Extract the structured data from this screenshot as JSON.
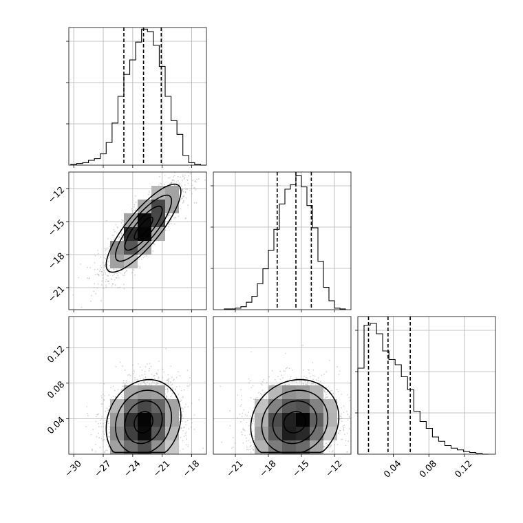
{
  "chart_data": {
    "type": "corner",
    "parameters": [
      {
        "name": "",
        "range": [
          -30.5,
          -16.5
        ],
        "ticks": [
          -30,
          -27,
          -24,
          -21,
          -18
        ],
        "tick_labels": [
          "−30",
          "−27",
          "−24",
          "−21",
          "−18"
        ]
      },
      {
        "name": "",
        "range": [
          -23.0,
          -10.5
        ],
        "ticks": [
          -21,
          -18,
          -15,
          -12
        ],
        "tick_labels": [
          "−21",
          "−18",
          "−15",
          "−12"
        ]
      },
      {
        "name": "",
        "range": [
          0.0,
          0.155
        ],
        "ticks": [
          0.04,
          0.08,
          0.12
        ],
        "tick_labels": [
          "0.04",
          "0.08",
          "0.12"
        ]
      }
    ],
    "marginals": [
      {
        "param_index": 0,
        "bin_edges": [
          -30.3,
          -29.7,
          -29.1,
          -28.5,
          -27.9,
          -27.3,
          -26.7,
          -26.1,
          -25.5,
          -24.9,
          -24.3,
          -23.7,
          -23.1,
          -22.5,
          -21.9,
          -21.3,
          -20.7,
          -20.1,
          -19.5,
          -18.9,
          -18.3,
          -17.7,
          -17.1,
          -16.5
        ],
        "counts": [
          1,
          2,
          3,
          6,
          8,
          14,
          28,
          52,
          85,
          112,
          130,
          152,
          168,
          165,
          148,
          122,
          85,
          55,
          38,
          12,
          3,
          1,
          0
        ],
        "quantiles": [
          -24.9,
          -22.9,
          -21.1
        ],
        "ylim": [
          0,
          170
        ]
      },
      {
        "param_index": 1,
        "bin_edges": [
          -22.0,
          -21.5,
          -21.0,
          -20.5,
          -20.0,
          -19.5,
          -19.0,
          -18.5,
          -18.0,
          -17.5,
          -17.0,
          -16.5,
          -16.0,
          -15.5,
          -15.0,
          -14.5,
          -14.0,
          -13.5,
          -13.0,
          -12.5,
          -12.0,
          -11.5,
          -11.0
        ],
        "counts": [
          1,
          1,
          2,
          4,
          10,
          18,
          35,
          55,
          80,
          108,
          142,
          162,
          168,
          180,
          165,
          140,
          110,
          65,
          30,
          12,
          2,
          1
        ],
        "quantiles": [
          -17.2,
          -15.5,
          -14.1
        ],
        "ylim": [
          0,
          185
        ]
      },
      {
        "param_index": 2,
        "bin_edges": [
          0.0,
          0.007,
          0.014,
          0.021,
          0.028,
          0.035,
          0.042,
          0.049,
          0.056,
          0.063,
          0.07,
          0.077,
          0.084,
          0.091,
          0.098,
          0.105,
          0.112,
          0.119,
          0.126,
          0.133,
          0.14,
          0.147
        ],
        "counts": [
          100,
          150,
          152,
          140,
          120,
          110,
          104,
          90,
          75,
          50,
          38,
          30,
          20,
          15,
          10,
          7,
          5,
          3,
          2,
          1,
          0
        ],
        "quantiles": [
          0.012,
          0.034,
          0.059
        ],
        "ylim": [
          0,
          160
        ]
      }
    ],
    "joints": [
      {
        "x_param": 0,
        "y_param": 1,
        "mean": [
          -22.9,
          -15.6
        ],
        "sigma": [
          1.9,
          2.0
        ],
        "rho": 0.83,
        "contour_levels_sigma": [
          0.5,
          1.0,
          1.5,
          2.0
        ]
      },
      {
        "x_param": 0,
        "y_param": 2,
        "mean": [
          -22.9,
          0.036
        ],
        "sigma": [
          1.9,
          0.024
        ],
        "rho": 0.15,
        "contour_levels_sigma": [
          0.5,
          1.0,
          1.5,
          2.0
        ]
      },
      {
        "x_param": 1,
        "y_param": 2,
        "mean": [
          -15.6,
          0.036
        ],
        "sigma": [
          2.0,
          0.024
        ],
        "rho": 0.12,
        "contour_levels_sigma": [
          0.5,
          1.0,
          1.5,
          2.0
        ]
      }
    ],
    "grid": true,
    "colors": {
      "frame": "#000000",
      "grid": "#b0b0b0",
      "points": "#808080",
      "density": "#000000"
    }
  }
}
